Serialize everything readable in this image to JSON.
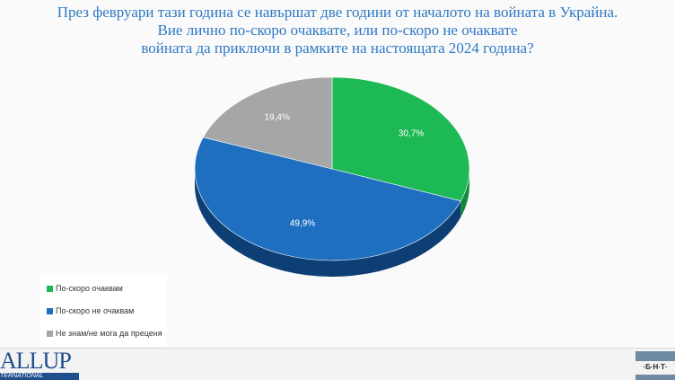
{
  "chart_data": {
    "type": "pie",
    "title": "През февруари тази година се навършат две години от началото на войната в Украйна. Вие лично по-скоро очаквате, или по-скоро не очаквате войната да приключи в рамките на настоящата 2024 година?",
    "title_lines": [
      "През февруари тази година се навършат две години от началото на войната в Украйна.",
      "Вие лично по-скоро очаквате, или по-скоро не очаквате",
      "войната да приключи в рамките на настоящата 2024 година?"
    ],
    "categories": [
      "По-скоро очаквам",
      "По-скоро не очаквам",
      "Не знам/не мога да преценя"
    ],
    "values": [
      30.7,
      49.9,
      19.4
    ],
    "labels": [
      "30,7%",
      "49,9%",
      "19,4%"
    ],
    "colors": [
      "#1db954",
      "#1f6fc0",
      "#a6a6a6"
    ],
    "side_colors": [
      "#128a3c",
      "#0e3f74",
      "#7a7a7a"
    ],
    "style": "3d",
    "legend_position": "bottom-left"
  },
  "logos": {
    "left": "ALLUP",
    "left_sub": "TERNATIONAL",
    "right": "·Б·Н·Т·"
  }
}
